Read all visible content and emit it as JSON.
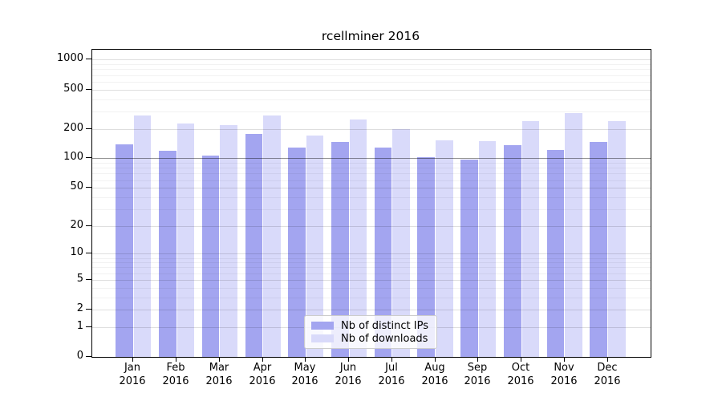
{
  "title": "rcellminer 2016",
  "chart_data": {
    "type": "bar",
    "title": "rcellminer 2016",
    "yscale": "log1p",
    "grid": true,
    "legend_position": "lower center",
    "months": [
      "Jan",
      "Feb",
      "Mar",
      "Apr",
      "May",
      "Jun",
      "Jul",
      "Aug",
      "Sep",
      "Oct",
      "Nov",
      "Dec"
    ],
    "year_label": "2016",
    "categories": [
      "Jan 2016",
      "Feb 2016",
      "Mar 2016",
      "Apr 2016",
      "May 2016",
      "Jun 2016",
      "Jul 2016",
      "Aug 2016",
      "Sep 2016",
      "Oct 2016",
      "Nov 2016",
      "Dec 2016"
    ],
    "series": [
      {
        "name": "Nb of distinct IPs",
        "color": "#a3a5f0",
        "values": [
          140,
          120,
          107,
          178,
          129,
          146,
          128,
          102,
          97,
          136,
          121,
          146
        ]
      },
      {
        "name": "Nb of downloads",
        "color": "#d9dafa",
        "values": [
          272,
          228,
          218,
          275,
          172,
          248,
          200,
          154,
          151,
          241,
          286,
          241
        ]
      }
    ],
    "yticks": [
      0,
      1,
      2,
      5,
      10,
      20,
      50,
      100,
      200,
      500,
      1000
    ],
    "minor_yticks": [
      3,
      4,
      6,
      7,
      8,
      9,
      30,
      40,
      60,
      70,
      80,
      90,
      300,
      400,
      600,
      700,
      800,
      900
    ],
    "emphasized_gridline": 100,
    "ylim": [
      0,
      1260
    ]
  },
  "colors": {
    "bar_distinct_ips": "#a3a5f0",
    "bar_downloads": "#d9dafa",
    "gridline_minor": "rgba(0,0,0,0.05)",
    "gridline_major": "rgba(0,0,0,0.13)",
    "gridline_emphasized": "rgba(0,0,0,0.42)",
    "axis": "#000000",
    "legend_border": "#cccccc"
  }
}
